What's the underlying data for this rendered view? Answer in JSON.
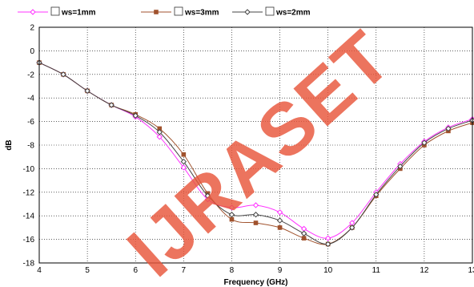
{
  "watermark": "IJRASET",
  "chart_data": {
    "type": "line",
    "title": "",
    "xlabel": "Frequency (GHz)",
    "ylabel": "dB",
    "xlim": [
      4,
      13
    ],
    "ylim": [
      -18,
      2
    ],
    "xticks": [
      "4",
      "5",
      "6",
      "7",
      "8",
      "9",
      "10",
      "11",
      "12",
      "13"
    ],
    "yticks": [
      "2",
      "0",
      "-2",
      "-4",
      "-6",
      "-8",
      "-10",
      "-12",
      "-14",
      "-16",
      "-18"
    ],
    "grid": true,
    "legend_position": "top-left",
    "series": [
      {
        "name": "ws=1mm",
        "color": "#ff33ff",
        "marker": "diamond",
        "x": [
          4,
          4.5,
          5,
          5.5,
          6,
          6.5,
          7,
          7.5,
          8,
          8.5,
          9,
          9.5,
          10,
          10.5,
          11,
          11.5,
          12,
          12.5,
          13
        ],
        "y": [
          -1.0,
          -2.0,
          -3.4,
          -4.6,
          -5.6,
          -7.3,
          -9.9,
          -12.6,
          -13.3,
          -13.1,
          -13.7,
          -15.1,
          -15.9,
          -14.6,
          -12.0,
          -9.6,
          -7.7,
          -6.5,
          -5.8
        ]
      },
      {
        "name": "ws=3mm",
        "color": "#a0522d",
        "marker": "square",
        "x": [
          4,
          4.5,
          5,
          5.5,
          6,
          6.5,
          7,
          7.5,
          8,
          8.5,
          9,
          9.5,
          10,
          10.5,
          11,
          11.5,
          12,
          12.5,
          13
        ],
        "y": [
          -1.0,
          -2.0,
          -3.4,
          -4.6,
          -5.4,
          -6.6,
          -8.8,
          -12.1,
          -14.3,
          -14.6,
          -15.0,
          -15.9,
          -16.4,
          -15.0,
          -12.3,
          -10.0,
          -8.0,
          -6.8,
          -6.1
        ]
      },
      {
        "name": "ws=2mm",
        "color": "#444444",
        "marker": "diamond",
        "x": [
          4,
          4.5,
          5,
          5.5,
          6,
          6.5,
          7,
          7.5,
          8,
          8.5,
          9,
          9.5,
          10,
          10.5,
          11,
          11.5,
          12,
          12.5,
          13
        ],
        "y": [
          -1.0,
          -2.0,
          -3.4,
          -4.6,
          -5.5,
          -6.9,
          -9.4,
          -12.3,
          -13.9,
          -13.9,
          -14.4,
          -15.5,
          -16.4,
          -15.0,
          -12.2,
          -9.8,
          -7.8,
          -6.6,
          -5.9
        ]
      }
    ]
  }
}
